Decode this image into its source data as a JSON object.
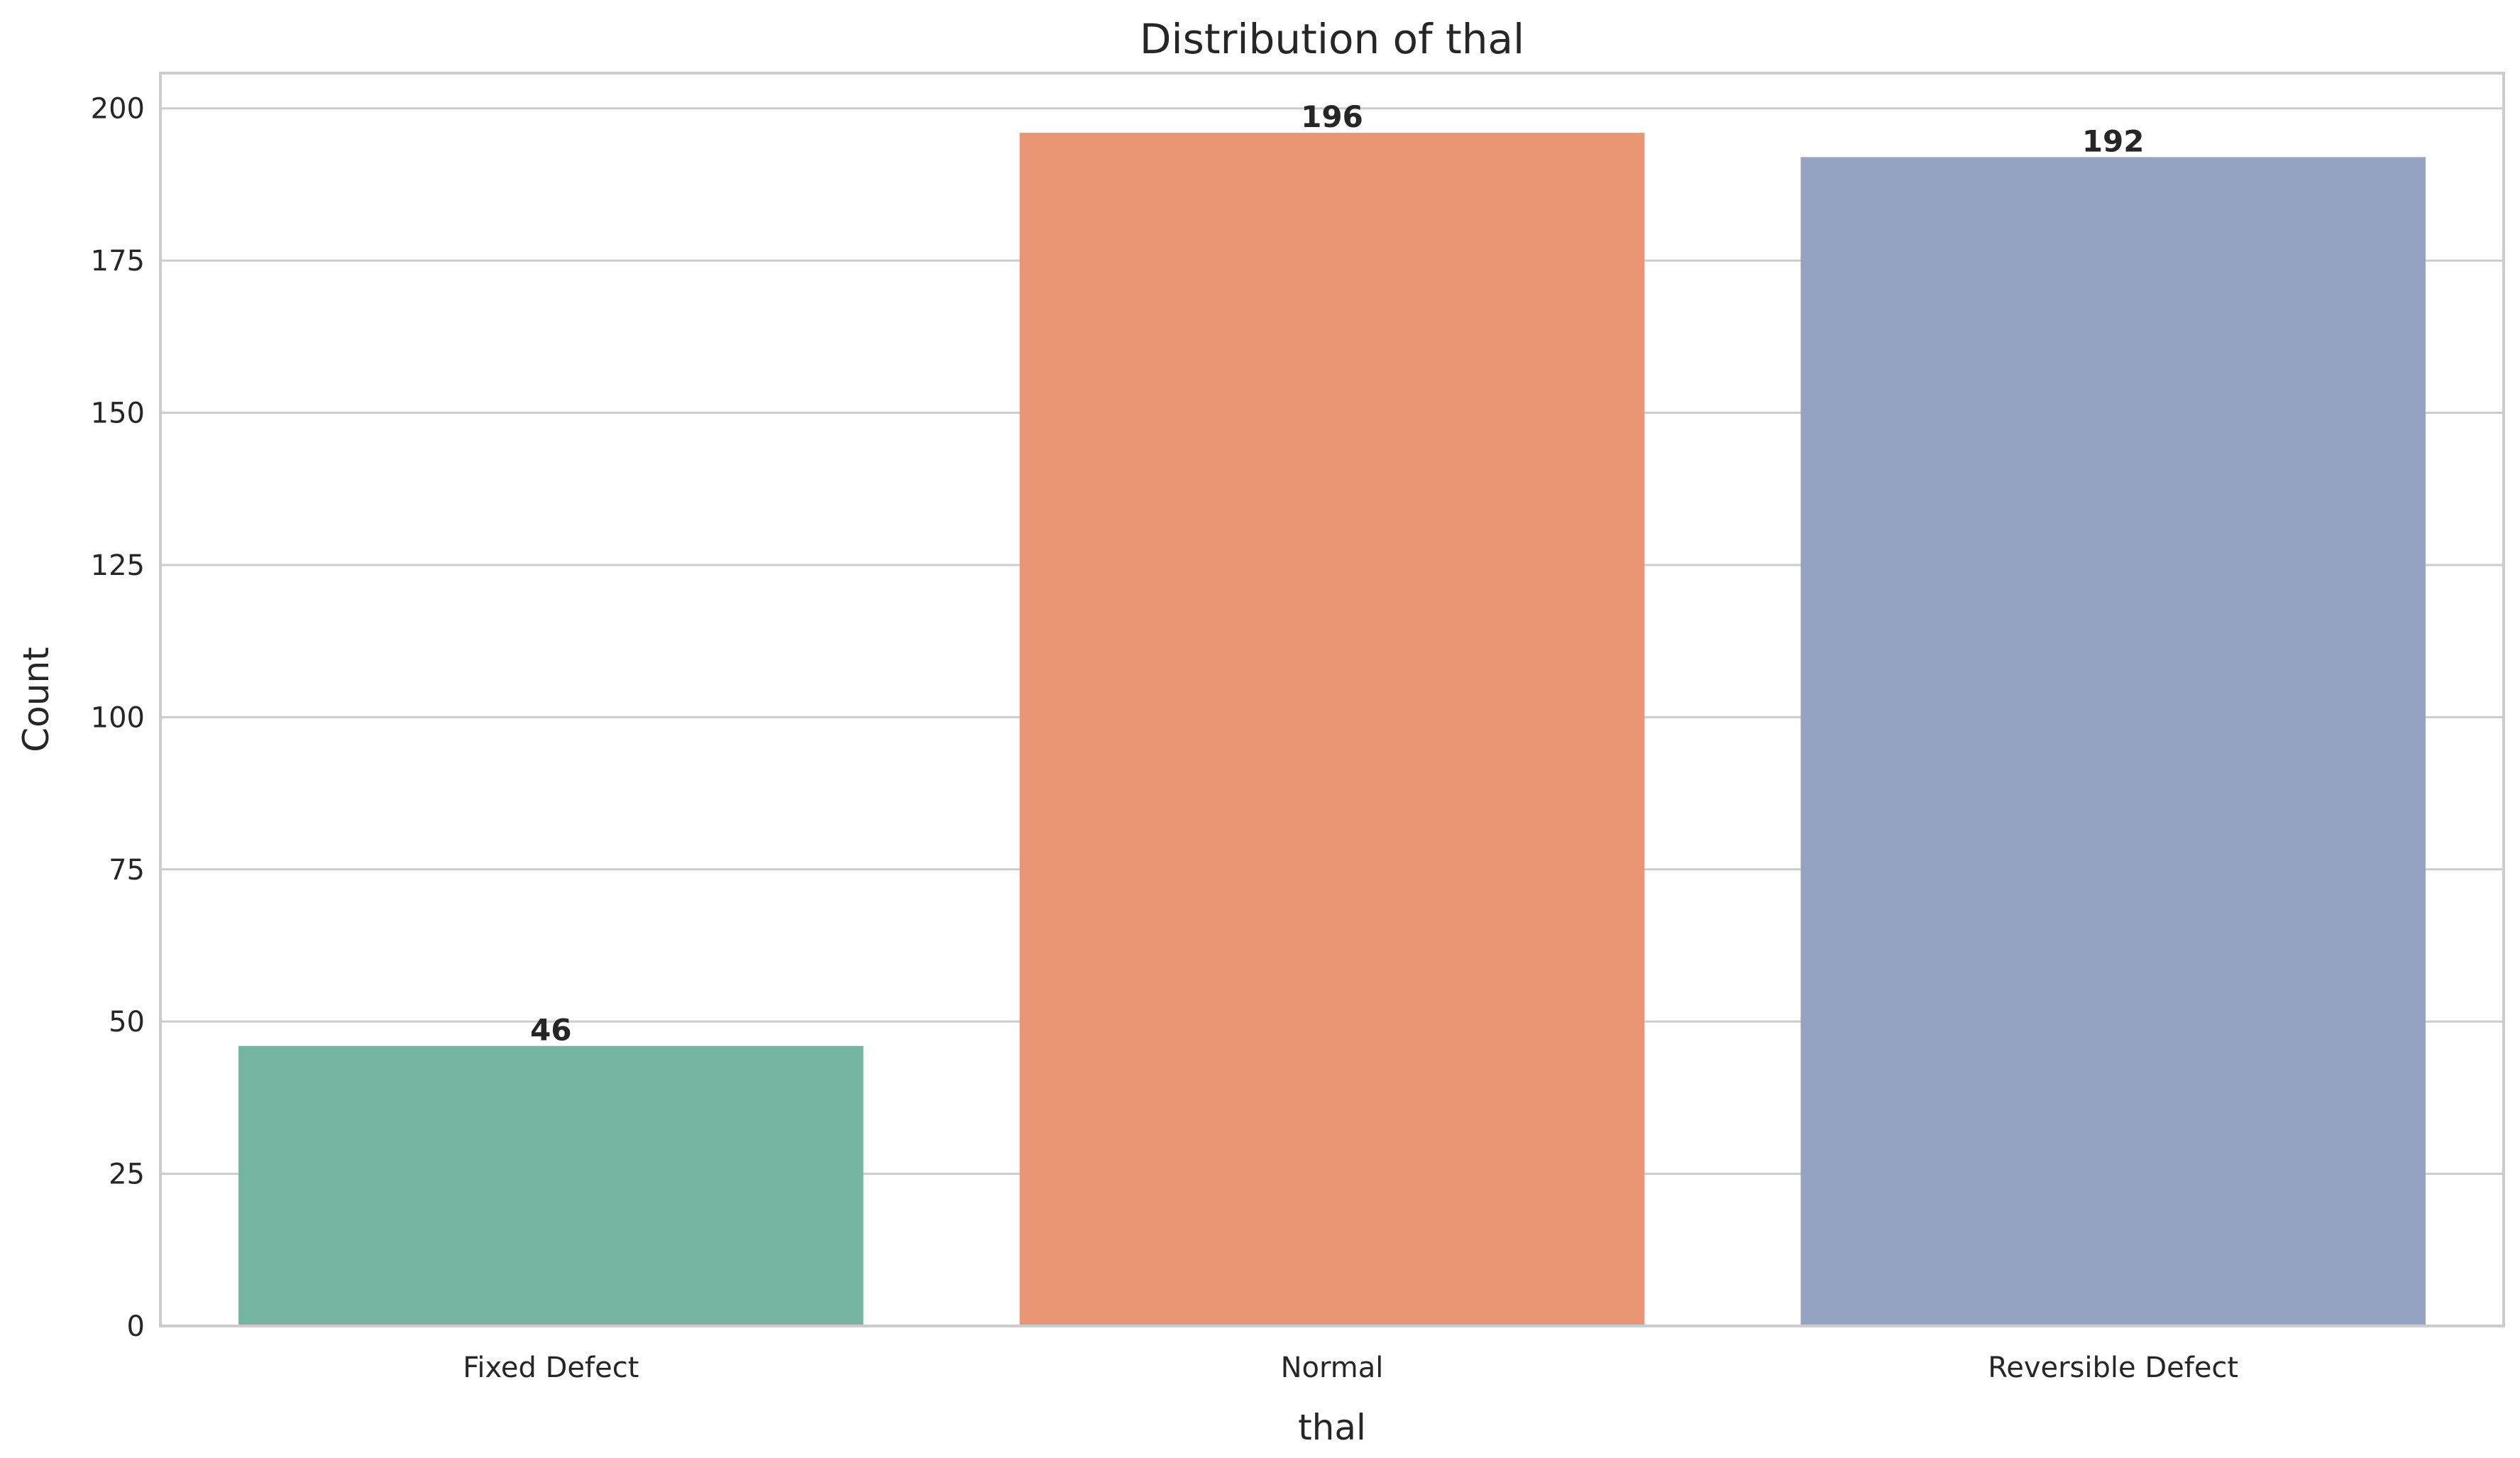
{
  "chart_data": {
    "type": "bar",
    "title": "Distribution of thal",
    "xlabel": "thal",
    "ylabel": "Count",
    "categories": [
      "Fixed Defect",
      "Normal",
      "Reversible Defect"
    ],
    "values": [
      46,
      196,
      192
    ],
    "data_labels": [
      "46",
      "196",
      "192"
    ],
    "colors": [
      "#74b4a0",
      "#ea9675",
      "#95a3c2"
    ],
    "ylim": [
      0,
      205.8
    ],
    "yticks": [
      0,
      25,
      50,
      75,
      100,
      125,
      150,
      175,
      200
    ],
    "grid": "horizontal",
    "grid_color": "#cccccc",
    "axes_edge_color": "#cccccc"
  }
}
